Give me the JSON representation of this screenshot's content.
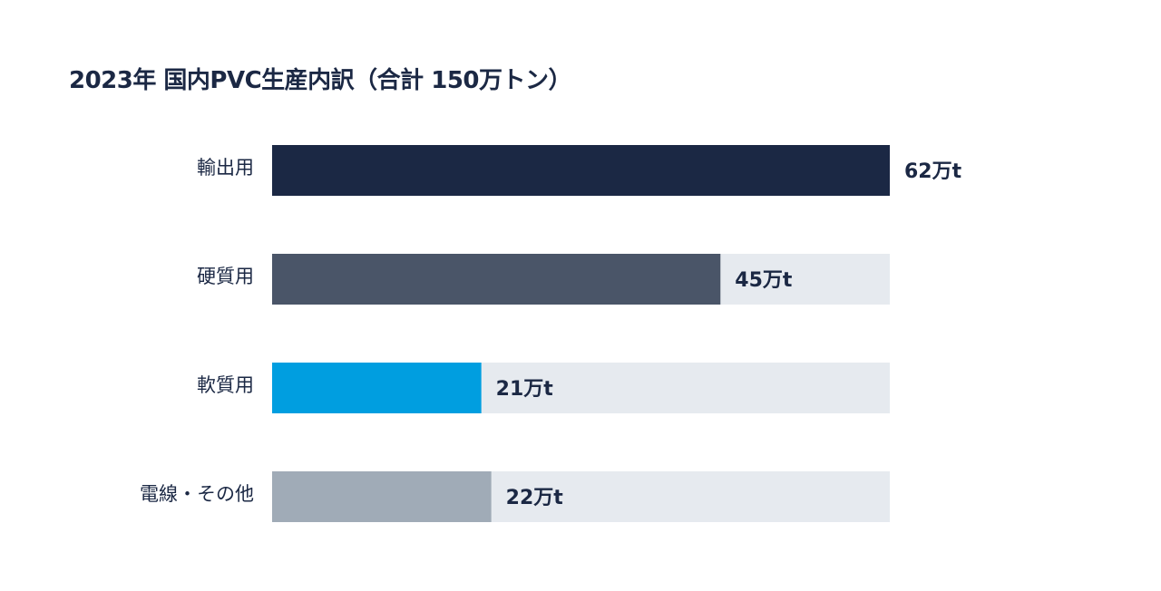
{
  "chart_data": {
    "type": "bar",
    "orientation": "horizontal",
    "title": "2023年 国内PVC生産内訳（合計 150万トン）",
    "categories": [
      "輸出用",
      "硬質用",
      "軟質用",
      "電線・その他"
    ],
    "values": [
      62,
      45,
      21,
      22
    ],
    "value_labels": [
      "62万t",
      "45万t",
      "21万t",
      "22万t"
    ],
    "unit": "万t",
    "xlim": [
      0,
      62
    ],
    "grid": false,
    "colors": [
      "#1b2844",
      "#4a5568",
      "#009ee0",
      "#a0abb7"
    ],
    "track_color": "#e6eaef",
    "text_color": "#1b2844"
  }
}
